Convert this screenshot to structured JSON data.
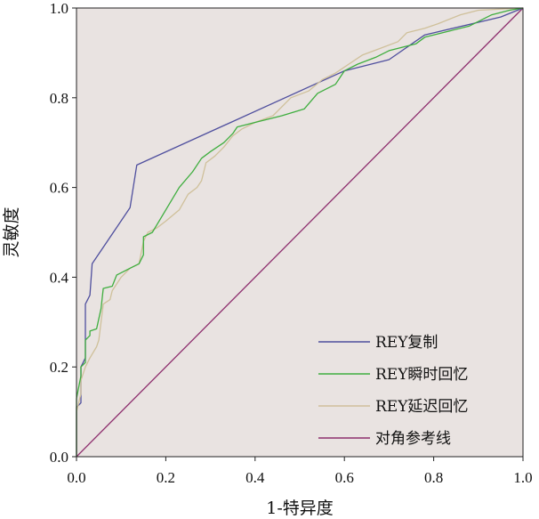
{
  "chart_data": {
    "type": "line",
    "title": "",
    "xlabel": "1-特异度",
    "ylabel": "灵敏度",
    "xlim": [
      0,
      1
    ],
    "ylim": [
      0,
      1
    ],
    "x_ticks": [
      "0.0",
      "0.2",
      "0.4",
      "0.6",
      "0.8",
      "1.0"
    ],
    "y_ticks": [
      "0.0",
      "0.2",
      "0.4",
      "0.6",
      "0.8",
      "1.0"
    ],
    "plot_background": "#e9e3e1",
    "grid": false,
    "legend_position": "bottom-right",
    "series": [
      {
        "name": "REY复制",
        "color": "#4f4f9e",
        "points": [
          [
            0,
            0
          ],
          [
            0,
            0.11
          ],
          [
            0.01,
            0.12
          ],
          [
            0.01,
            0.2
          ],
          [
            0.02,
            0.22
          ],
          [
            0.02,
            0.34
          ],
          [
            0.03,
            0.36
          ],
          [
            0.035,
            0.43
          ],
          [
            0.12,
            0.555
          ],
          [
            0.135,
            0.65
          ],
          [
            0.6,
            0.86
          ],
          [
            0.7,
            0.885
          ],
          [
            0.78,
            0.94
          ],
          [
            0.95,
            0.98
          ],
          [
            1,
            1
          ]
        ]
      },
      {
        "name": "REY瞬时回忆",
        "color": "#3fae3f",
        "points": [
          [
            0,
            0
          ],
          [
            0,
            0.13
          ],
          [
            0.01,
            0.18
          ],
          [
            0.01,
            0.2
          ],
          [
            0.02,
            0.21
          ],
          [
            0.02,
            0.26
          ],
          [
            0.03,
            0.27
          ],
          [
            0.03,
            0.28
          ],
          [
            0.045,
            0.285
          ],
          [
            0.055,
            0.33
          ],
          [
            0.06,
            0.375
          ],
          [
            0.08,
            0.38
          ],
          [
            0.09,
            0.405
          ],
          [
            0.1,
            0.41
          ],
          [
            0.12,
            0.42
          ],
          [
            0.14,
            0.43
          ],
          [
            0.15,
            0.45
          ],
          [
            0.15,
            0.49
          ],
          [
            0.17,
            0.5
          ],
          [
            0.2,
            0.55
          ],
          [
            0.23,
            0.6
          ],
          [
            0.26,
            0.635
          ],
          [
            0.28,
            0.665
          ],
          [
            0.3,
            0.68
          ],
          [
            0.33,
            0.7
          ],
          [
            0.35,
            0.72
          ],
          [
            0.36,
            0.735
          ],
          [
            0.4,
            0.745
          ],
          [
            0.46,
            0.76
          ],
          [
            0.51,
            0.775
          ],
          [
            0.54,
            0.81
          ],
          [
            0.58,
            0.83
          ],
          [
            0.6,
            0.86
          ],
          [
            0.63,
            0.875
          ],
          [
            0.67,
            0.89
          ],
          [
            0.7,
            0.905
          ],
          [
            0.76,
            0.92
          ],
          [
            0.78,
            0.935
          ],
          [
            0.84,
            0.95
          ],
          [
            0.88,
            0.96
          ],
          [
            0.93,
            0.985
          ],
          [
            0.97,
            0.995
          ],
          [
            1,
            1
          ]
        ]
      },
      {
        "name": "REY延迟回忆",
        "color": "#cfc09a",
        "points": [
          [
            0,
            0
          ],
          [
            0,
            0.1
          ],
          [
            0.01,
            0.14
          ],
          [
            0.01,
            0.17
          ],
          [
            0.02,
            0.2
          ],
          [
            0.03,
            0.22
          ],
          [
            0.045,
            0.245
          ],
          [
            0.05,
            0.26
          ],
          [
            0.055,
            0.3
          ],
          [
            0.06,
            0.34
          ],
          [
            0.075,
            0.35
          ],
          [
            0.08,
            0.37
          ],
          [
            0.1,
            0.4
          ],
          [
            0.12,
            0.42
          ],
          [
            0.14,
            0.43
          ],
          [
            0.15,
            0.48
          ],
          [
            0.16,
            0.5
          ],
          [
            0.18,
            0.51
          ],
          [
            0.2,
            0.525
          ],
          [
            0.23,
            0.55
          ],
          [
            0.25,
            0.585
          ],
          [
            0.27,
            0.6
          ],
          [
            0.28,
            0.615
          ],
          [
            0.29,
            0.655
          ],
          [
            0.31,
            0.67
          ],
          [
            0.33,
            0.69
          ],
          [
            0.35,
            0.715
          ],
          [
            0.37,
            0.73
          ],
          [
            0.4,
            0.745
          ],
          [
            0.44,
            0.76
          ],
          [
            0.48,
            0.8
          ],
          [
            0.52,
            0.815
          ],
          [
            0.55,
            0.84
          ],
          [
            0.58,
            0.855
          ],
          [
            0.61,
            0.875
          ],
          [
            0.64,
            0.895
          ],
          [
            0.68,
            0.91
          ],
          [
            0.72,
            0.925
          ],
          [
            0.74,
            0.945
          ],
          [
            0.78,
            0.955
          ],
          [
            0.81,
            0.965
          ],
          [
            0.86,
            0.985
          ],
          [
            0.9,
            0.995
          ],
          [
            1,
            1
          ]
        ]
      },
      {
        "name": "对角参考线",
        "color": "#8e2f6e",
        "points": [
          [
            0,
            0
          ],
          [
            1,
            1
          ]
        ]
      }
    ]
  }
}
